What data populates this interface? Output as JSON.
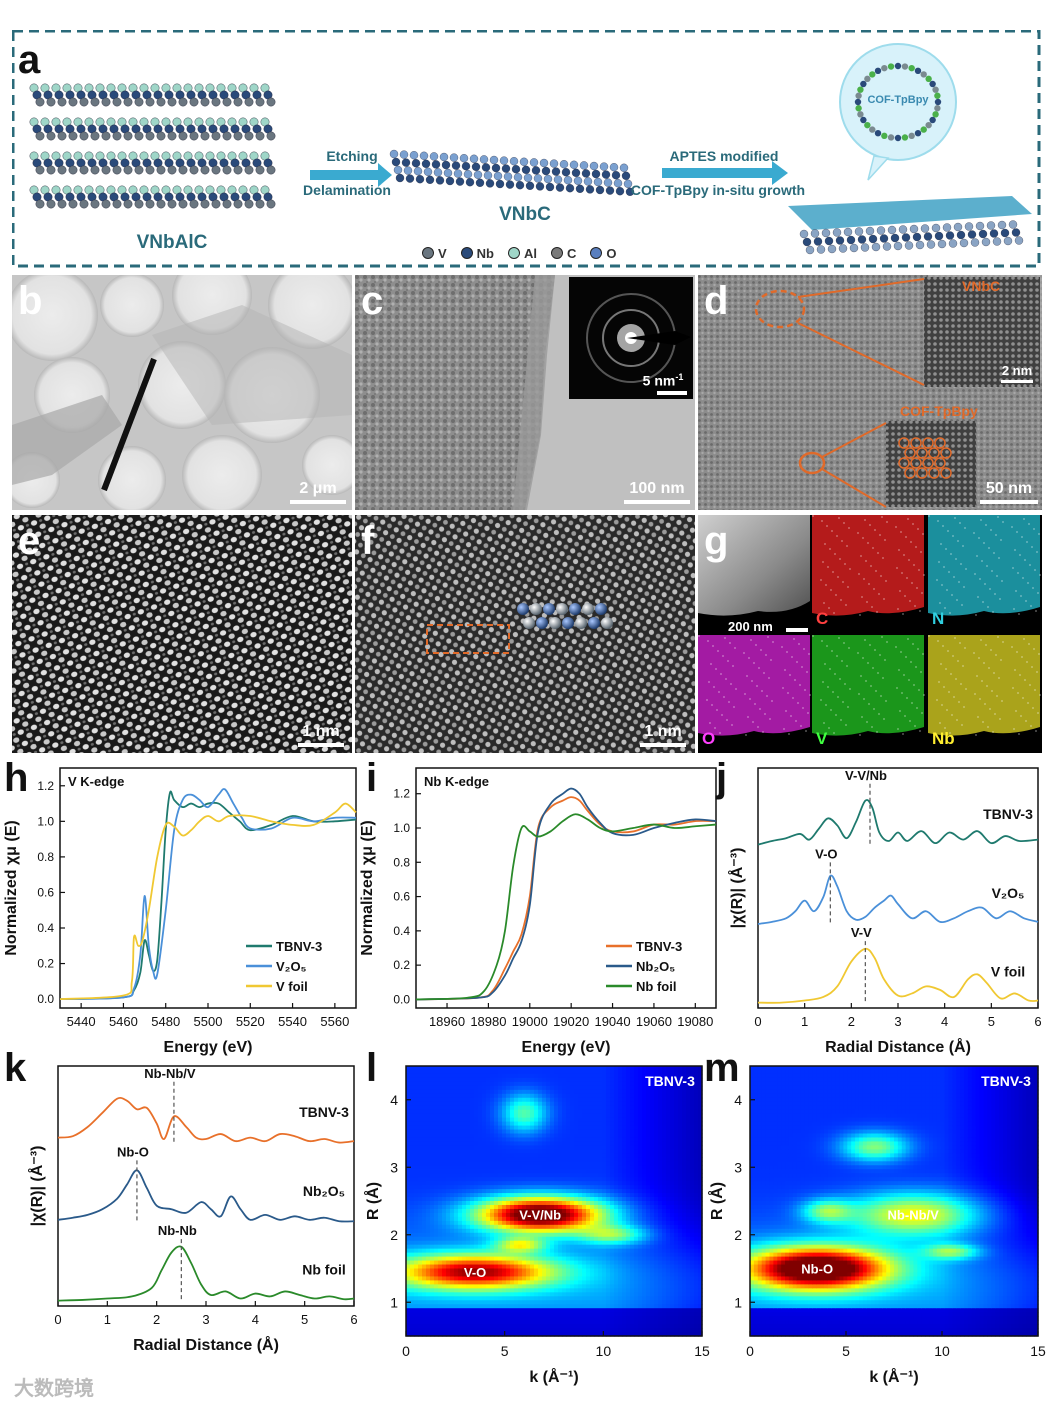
{
  "panel_labels": {
    "a": "a",
    "b": "b",
    "c": "c",
    "d": "d",
    "e": "e",
    "f": "f",
    "g": "g",
    "h": "h",
    "i": "i",
    "j": "j",
    "k": "k",
    "l": "l",
    "m": "m"
  },
  "panel_a": {
    "vnbalc_label": "VNbAlC",
    "vnbc_label": "VNbC",
    "arrow1_top": "Etching",
    "arrow1_bottom": "Delamination",
    "arrow2_top": "APTES modified",
    "arrow2_bottom": "COF-TpBpy in-situ growth",
    "bubble_label": "COF-TpBpy",
    "atom_legend": [
      {
        "symbol": "V",
        "color": "#6a7680"
      },
      {
        "symbol": "Nb",
        "color": "#2a4a7a"
      },
      {
        "symbol": "Al",
        "color": "#9fd6c8"
      },
      {
        "symbol": "C",
        "color": "#7a7a7a"
      },
      {
        "symbol": "O",
        "color": "#5a7fbf"
      }
    ],
    "frame_color": "#2a6a7a",
    "title_color": "#2a6a7a"
  },
  "panel_b": {
    "scale": "2 μm"
  },
  "panel_c": {
    "scale": "100 nm",
    "inset_scale": "5 nm",
    "inset_scale_sup": "-1"
  },
  "panel_d": {
    "scale": "50 nm",
    "inset1_label": "VNbC",
    "inset1_scale": "2 nm",
    "inset2_label": "COF-TpBpy",
    "accent": "#e06a2a"
  },
  "panel_e": {
    "scale": "1 nm"
  },
  "panel_f": {
    "scale": "1 nm"
  },
  "panel_g": {
    "scale": "200 nm",
    "maps": [
      {
        "element": "C",
        "color": "#d42020",
        "label_color": "#ff4040"
      },
      {
        "element": "N",
        "color": "#20a8b8",
        "label_color": "#30d0e0"
      },
      {
        "element": "O",
        "color": "#c020c0",
        "label_color": "#ff40ff"
      },
      {
        "element": "V",
        "color": "#20b020",
        "label_color": "#40ff40"
      },
      {
        "element": "Nb",
        "color": "#c8c020",
        "label_color": "#ffee30"
      }
    ]
  },
  "chart_data": [
    {
      "id": "h",
      "type": "line",
      "title": "V K-edge",
      "xlabel": "Energy (eV)",
      "ylabel": "Normalized χμ (E)",
      "xlim": [
        5430,
        5570
      ],
      "ylim": [
        -0.05,
        1.3
      ],
      "xticks": [
        5440,
        5460,
        5480,
        5500,
        5520,
        5540,
        5560
      ],
      "yticks": [
        0.0,
        0.2,
        0.4,
        0.6,
        0.8,
        1.0,
        1.2
      ],
      "ytick_labels": [
        "0.0",
        "0.2",
        "0.4",
        "0.6",
        "0.8",
        "1.0",
        "1.2"
      ],
      "series": [
        {
          "name": "TBNV-3",
          "color": "#1f7a6e",
          "x": [
            5430,
            5460,
            5465,
            5468,
            5470,
            5472,
            5474,
            5476,
            5478,
            5480,
            5482,
            5484,
            5488,
            5492,
            5496,
            5500,
            5505,
            5510,
            5515,
            5520,
            5530,
            5540,
            5550,
            5560,
            5570
          ],
          "y": [
            0,
            0.01,
            0.05,
            0.15,
            0.33,
            0.25,
            0.16,
            0.22,
            0.55,
            0.95,
            1.16,
            1.12,
            1.08,
            1.1,
            1.08,
            1.1,
            1.1,
            1.05,
            1.0,
            0.95,
            0.98,
            1.03,
            1.0,
            1.0,
            1.01
          ]
        },
        {
          "name": "V₂O₅",
          "color": "#4a90d9",
          "x": [
            5430,
            5460,
            5465,
            5468,
            5470,
            5472,
            5474,
            5476,
            5480,
            5484,
            5488,
            5492,
            5496,
            5500,
            5505,
            5508,
            5512,
            5516,
            5520,
            5530,
            5540,
            5550,
            5560,
            5570
          ],
          "y": [
            0,
            0.01,
            0.06,
            0.25,
            0.58,
            0.3,
            0.16,
            0.14,
            0.5,
            0.95,
            1.12,
            1.15,
            1.12,
            1.08,
            1.15,
            1.18,
            1.1,
            1.02,
            0.96,
            0.96,
            1.02,
            1.0,
            1.02,
            1.02
          ]
        },
        {
          "name": "V foil",
          "color": "#f0c832",
          "x": [
            5430,
            5460,
            5464,
            5465,
            5467,
            5469,
            5472,
            5476,
            5480,
            5484,
            5488,
            5492,
            5496,
            5500,
            5505,
            5510,
            5520,
            5530,
            5540,
            5550,
            5560,
            5565,
            5570
          ],
          "y": [
            0,
            0.02,
            0.1,
            0.35,
            0.3,
            0.33,
            0.5,
            0.8,
            0.98,
            0.97,
            0.92,
            0.95,
            1.0,
            1.03,
            1.0,
            1.03,
            1.03,
            1.0,
            0.98,
            0.98,
            1.05,
            1.1,
            1.05
          ]
        }
      ],
      "legend": "bottom-right"
    },
    {
      "id": "i",
      "type": "line",
      "title": "Nb K-edge",
      "xlabel": "Energy (eV)",
      "ylabel": "Normalized χμ (E)",
      "xlim": [
        18945,
        19090
      ],
      "ylim": [
        -0.05,
        1.35
      ],
      "xticks": [
        18960,
        18980,
        19000,
        19020,
        19040,
        19060,
        19080
      ],
      "yticks": [
        0.0,
        0.2,
        0.4,
        0.6,
        0.8,
        1.0,
        1.2
      ],
      "ytick_labels": [
        "0.0",
        "0.2",
        "0.4",
        "0.6",
        "0.8",
        "1.0",
        "1.2"
      ],
      "series": [
        {
          "name": "TBNV-3",
          "color": "#e8702a",
          "x": [
            18945,
            18975,
            18982,
            18988,
            18992,
            18996,
            19000,
            19004,
            19010,
            19016,
            19020,
            19024,
            19028,
            19034,
            19040,
            19050,
            19060,
            19070,
            19080,
            19090
          ],
          "y": [
            0,
            0.01,
            0.05,
            0.18,
            0.28,
            0.38,
            0.6,
            1.0,
            1.12,
            1.16,
            1.18,
            1.16,
            1.1,
            1.02,
            0.98,
            0.98,
            1.02,
            1.02,
            1.04,
            1.04
          ]
        },
        {
          "name": "Nb₂O₅",
          "color": "#2a5a8a",
          "x": [
            18945,
            18975,
            18982,
            18988,
            18992,
            18996,
            19000,
            19004,
            19010,
            19016,
            19020,
            19024,
            19028,
            19034,
            19040,
            19050,
            19060,
            19070,
            19080,
            19090
          ],
          "y": [
            0,
            0.01,
            0.04,
            0.14,
            0.24,
            0.34,
            0.55,
            0.98,
            1.14,
            1.2,
            1.23,
            1.2,
            1.12,
            1.03,
            0.97,
            0.96,
            1.0,
            1.03,
            1.05,
            1.04
          ]
        },
        {
          "name": "Nb foil",
          "color": "#2a8a2a",
          "x": [
            18945,
            18970,
            18978,
            18984,
            18988,
            18992,
            18996,
            19000,
            19004,
            19010,
            19016,
            19022,
            19028,
            19034,
            19040,
            19050,
            19060,
            19070,
            19080,
            19090
          ],
          "y": [
            0,
            0.01,
            0.05,
            0.2,
            0.4,
            0.78,
            1.0,
            0.98,
            0.95,
            0.98,
            1.04,
            1.08,
            1.05,
            1.0,
            0.98,
            1.0,
            1.02,
            1.0,
            1.01,
            1.02
          ]
        }
      ],
      "legend": "bottom-right"
    },
    {
      "id": "j",
      "type": "line",
      "xlabel": "Radial Distance (Å)",
      "ylabel": "|χ(R)| (Å⁻³)",
      "xlim": [
        0,
        6
      ],
      "xticks": [
        0,
        1,
        2,
        3,
        4,
        5,
        6
      ],
      "offsets": [
        2.0,
        1.0,
        0.0
      ],
      "series": [
        {
          "name": "TBNV-3",
          "color": "#1f7a6e",
          "x": [
            0,
            0.3,
            0.6,
            0.9,
            1.1,
            1.3,
            1.5,
            1.7,
            1.9,
            2.1,
            2.3,
            2.45,
            2.6,
            2.8,
            3.0,
            3.2,
            3.5,
            3.8,
            4.1,
            4.4,
            4.7,
            5.0,
            5.3,
            5.6,
            6.0
          ],
          "y": [
            0.03,
            0.08,
            0.12,
            0.18,
            0.1,
            0.25,
            0.4,
            0.3,
            0.12,
            0.35,
            0.65,
            0.55,
            0.2,
            0.08,
            0.2,
            0.08,
            0.22,
            0.05,
            0.2,
            0.1,
            0.22,
            0.05,
            0.15,
            0.08,
            0.1
          ]
        },
        {
          "name": "V₂O₅",
          "color": "#4a90d9",
          "x": [
            0,
            0.3,
            0.6,
            0.8,
            1.0,
            1.2,
            1.4,
            1.55,
            1.7,
            1.9,
            2.1,
            2.3,
            2.5,
            2.7,
            2.85,
            3.0,
            3.3,
            3.6,
            3.9,
            4.2,
            4.5,
            4.8,
            5.1,
            5.4,
            5.7,
            6.0
          ],
          "y": [
            0.02,
            0.05,
            0.1,
            0.2,
            0.35,
            0.2,
            0.4,
            0.7,
            0.55,
            0.2,
            0.08,
            0.12,
            0.25,
            0.35,
            0.42,
            0.3,
            0.1,
            0.2,
            0.05,
            0.1,
            0.2,
            0.25,
            0.1,
            0.2,
            0.1,
            0.05
          ]
        },
        {
          "name": "V foil",
          "color": "#f0c832",
          "x": [
            0,
            0.5,
            1.0,
            1.4,
            1.7,
            2.0,
            2.3,
            2.5,
            2.7,
            3.0,
            3.3,
            3.6,
            3.9,
            4.2,
            4.5,
            4.7,
            4.9,
            5.2,
            5.5,
            5.8,
            6.0
          ],
          "y": [
            0.02,
            0.02,
            0.05,
            0.1,
            0.25,
            0.6,
            0.78,
            0.65,
            0.35,
            0.12,
            0.15,
            0.25,
            0.2,
            0.1,
            0.35,
            0.42,
            0.3,
            0.08,
            0.15,
            0.05,
            0.05
          ]
        }
      ],
      "series_labels": [
        "TBNV-3",
        "V₂O₅",
        "V foil"
      ],
      "annotations": [
        {
          "text": "V-V/Nb",
          "x": 2.4
        },
        {
          "text": "V-O",
          "x": 1.55
        },
        {
          "text": "V-V",
          "x": 2.3
        }
      ]
    },
    {
      "id": "k",
      "type": "line",
      "xlabel": "Radial Distance (Å)",
      "ylabel": "|χ(R)| (Å⁻³)",
      "xlim": [
        0,
        6
      ],
      "xticks": [
        0,
        1,
        2,
        3,
        4,
        5,
        6
      ],
      "offsets": [
        2.0,
        1.0,
        0.0
      ],
      "series": [
        {
          "name": "TBNV-3",
          "color": "#e8702a",
          "x": [
            0,
            0.3,
            0.6,
            0.9,
            1.2,
            1.4,
            1.6,
            1.8,
            2.0,
            2.15,
            2.35,
            2.6,
            2.8,
            3.0,
            3.3,
            3.6,
            3.9,
            4.2,
            4.5,
            4.8,
            5.1,
            5.4,
            5.7,
            6.0
          ],
          "y": [
            0.1,
            0.12,
            0.25,
            0.45,
            0.65,
            0.62,
            0.5,
            0.52,
            0.3,
            0.08,
            0.4,
            0.25,
            0.1,
            0.08,
            0.15,
            0.05,
            0.1,
            0.05,
            0.15,
            0.12,
            0.05,
            0.08,
            0.03,
            0.05
          ]
        },
        {
          "name": "Nb₂O₅",
          "color": "#2a5a8a",
          "x": [
            0,
            0.3,
            0.6,
            0.9,
            1.2,
            1.4,
            1.6,
            1.8,
            2.0,
            2.3,
            2.6,
            2.9,
            3.1,
            3.3,
            3.5,
            3.7,
            3.9,
            4.2,
            4.5,
            4.8,
            5.1,
            5.4,
            5.7,
            6.0
          ],
          "y": [
            0.05,
            0.08,
            0.12,
            0.2,
            0.35,
            0.55,
            0.75,
            0.5,
            0.25,
            0.2,
            0.15,
            0.3,
            0.2,
            0.1,
            0.38,
            0.2,
            0.05,
            0.12,
            0.05,
            0.1,
            0.05,
            0.08,
            0.03,
            0.03
          ]
        },
        {
          "name": "Nb foil",
          "color": "#2a8a2a",
          "x": [
            0,
            0.5,
            1.0,
            1.5,
            1.9,
            2.1,
            2.3,
            2.5,
            2.7,
            2.9,
            3.1,
            3.4,
            3.7,
            4.0,
            4.3,
            4.6,
            4.9,
            5.2,
            5.5,
            5.8,
            6.0
          ],
          "y": [
            0.02,
            0.03,
            0.05,
            0.08,
            0.2,
            0.45,
            0.7,
            0.78,
            0.55,
            0.25,
            0.1,
            0.15,
            0.05,
            0.12,
            0.08,
            0.15,
            0.1,
            0.05,
            0.08,
            0.04,
            0.05
          ]
        }
      ],
      "series_labels": [
        "TBNV-3",
        "Nb₂O₅",
        "Nb foil"
      ],
      "annotations": [
        {
          "text": "Nb-Nb/V",
          "x": 2.35
        },
        {
          "text": "Nb-O",
          "x": 1.6
        },
        {
          "text": "Nb-Nb",
          "x": 2.5
        }
      ]
    },
    {
      "id": "l",
      "type": "heatmap",
      "title": "TBNV-3",
      "xlabel": "k (Å⁻¹)",
      "ylabel": "R (Å)",
      "xlim": [
        0,
        15
      ],
      "ylim": [
        0.5,
        4.5
      ],
      "xticks": [
        0,
        5,
        10,
        15
      ],
      "yticks": [
        1,
        2,
        3,
        4
      ],
      "blobs": [
        {
          "label": "V-V/Nb",
          "k": 6.8,
          "R": 2.3,
          "intensity": 1.0,
          "sk": 2.2,
          "sR": 0.18
        },
        {
          "label": "V-O",
          "k": 3.5,
          "R": 1.45,
          "intensity": 0.75,
          "sk": 2.8,
          "sR": 0.18
        },
        {
          "label": "",
          "k": 5.8,
          "R": 1.85,
          "intensity": 0.35,
          "sk": 0.9,
          "sR": 0.08
        },
        {
          "label": "",
          "k": 10.5,
          "R": 2.0,
          "intensity": 0.3,
          "sk": 1.2,
          "sR": 0.1
        },
        {
          "label": "",
          "k": 6.0,
          "R": 3.8,
          "intensity": 0.3,
          "sk": 0.8,
          "sR": 0.2
        }
      ]
    },
    {
      "id": "m",
      "type": "heatmap",
      "title": "TBNV-3",
      "xlabel": "k (Å⁻¹)",
      "ylabel": "R (Å)",
      "xlim": [
        0,
        15
      ],
      "ylim": [
        0.5,
        4.5
      ],
      "xticks": [
        0,
        5,
        10,
        15
      ],
      "yticks": [
        1,
        2,
        3,
        4
      ],
      "blobs": [
        {
          "label": "Nb-O",
          "k": 3.5,
          "R": 1.5,
          "intensity": 1.0,
          "sk": 2.6,
          "sR": 0.22
        },
        {
          "label": "Nb-Nb/V",
          "k": 8.5,
          "R": 2.3,
          "intensity": 0.45,
          "sk": 2.4,
          "sR": 0.22
        },
        {
          "label": "",
          "k": 10.5,
          "R": 1.75,
          "intensity": 0.3,
          "sk": 1.0,
          "sR": 0.08
        },
        {
          "label": "",
          "k": 6.5,
          "R": 3.3,
          "intensity": 0.35,
          "sk": 1.2,
          "sR": 0.15
        },
        {
          "label": "",
          "k": 4.0,
          "R": 2.35,
          "intensity": 0.3,
          "sk": 0.9,
          "sR": 0.12
        }
      ]
    }
  ],
  "watermark": "大数跨境"
}
